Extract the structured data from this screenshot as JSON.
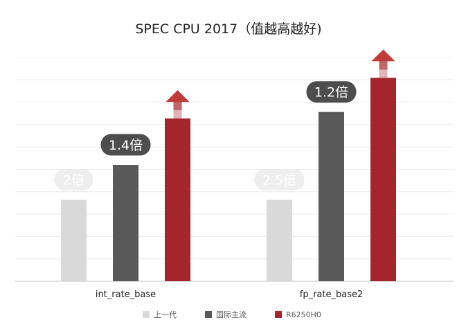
{
  "chart_data": {
    "type": "bar",
    "title": "SPEC CPU  2017（值越高越好)",
    "categories": [
      "int_rate_base",
      "fp_rate_base2"
    ],
    "series": [
      {
        "name": "上一代",
        "color": "#d9d9d9",
        "values": [
          1.0,
          1.0
        ]
      },
      {
        "name": "国际主流",
        "color": "#595959",
        "values": [
          1.43,
          2.08
        ]
      },
      {
        "name": "R6250H0",
        "color": "#a4262c",
        "values": [
          2.0,
          2.5
        ]
      }
    ],
    "annotations": [
      {
        "category": "int_rate_base",
        "series": "上一代",
        "text": "2倍"
      },
      {
        "category": "int_rate_base",
        "series": "国际主流",
        "text": "1.4倍"
      },
      {
        "category": "fp_rate_base2",
        "series": "上一代",
        "text": "2.5倍"
      },
      {
        "category": "fp_rate_base2",
        "series": "国际主流",
        "text": "1.2倍"
      }
    ],
    "xlabel": "",
    "ylabel": "",
    "ylim": [
      0,
      2.75
    ],
    "grid": true,
    "legend": "bottom-center",
    "arrow_on_series": "R6250H0"
  }
}
